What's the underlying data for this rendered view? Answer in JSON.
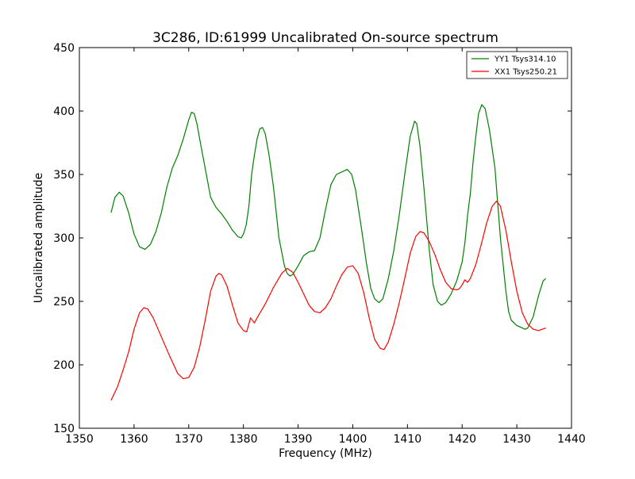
{
  "chart_data": {
    "type": "line",
    "title": "3C286, ID:61999 Uncalibrated On-source spectrum",
    "xlabel": "Frequency (MHz)",
    "ylabel": "Uncalibrated amplitude",
    "xlim": [
      1350,
      1440
    ],
    "ylim": [
      150,
      450
    ],
    "xticks": [
      1350,
      1360,
      1370,
      1380,
      1390,
      1400,
      1410,
      1420,
      1430,
      1440
    ],
    "yticks": [
      150,
      200,
      250,
      300,
      350,
      400,
      450
    ],
    "grid": false,
    "legend_position": "top-right",
    "series": [
      {
        "name": "YY1 Tsys314.10",
        "color": "#008000",
        "points": [
          [
            1355.8,
            320
          ],
          [
            1356.5,
            332
          ],
          [
            1357.3,
            336
          ],
          [
            1358.0,
            333
          ],
          [
            1359.0,
            320
          ],
          [
            1360.0,
            303
          ],
          [
            1361.0,
            293
          ],
          [
            1362.0,
            291
          ],
          [
            1363.0,
            295
          ],
          [
            1364.0,
            305
          ],
          [
            1365.0,
            320
          ],
          [
            1366.0,
            340
          ],
          [
            1367.0,
            355
          ],
          [
            1368.0,
            365
          ],
          [
            1369.0,
            378
          ],
          [
            1370.0,
            393
          ],
          [
            1370.5,
            399
          ],
          [
            1371.0,
            398
          ],
          [
            1371.5,
            390
          ],
          [
            1372.0,
            378
          ],
          [
            1373.0,
            355
          ],
          [
            1374.0,
            332
          ],
          [
            1375.0,
            324
          ],
          [
            1376.0,
            319
          ],
          [
            1377.0,
            313
          ],
          [
            1378.0,
            306
          ],
          [
            1379.0,
            301
          ],
          [
            1379.6,
            300
          ],
          [
            1380.0,
            303
          ],
          [
            1380.5,
            310
          ],
          [
            1381.0,
            325
          ],
          [
            1381.5,
            350
          ],
          [
            1382.0,
            365
          ],
          [
            1382.5,
            378
          ],
          [
            1383.0,
            386
          ],
          [
            1383.5,
            387
          ],
          [
            1384.0,
            382
          ],
          [
            1384.7,
            365
          ],
          [
            1385.5,
            340
          ],
          [
            1386.5,
            300
          ],
          [
            1387.5,
            278
          ],
          [
            1388.0,
            272
          ],
          [
            1388.5,
            270
          ],
          [
            1389.0,
            271
          ],
          [
            1390.0,
            278
          ],
          [
            1391.0,
            286
          ],
          [
            1392.0,
            289
          ],
          [
            1393.0,
            290
          ],
          [
            1394.0,
            300
          ],
          [
            1395.0,
            322
          ],
          [
            1396.0,
            342
          ],
          [
            1397.0,
            350
          ],
          [
            1398.0,
            352
          ],
          [
            1399.0,
            354
          ],
          [
            1399.8,
            350
          ],
          [
            1400.5,
            338
          ],
          [
            1401.5,
            310
          ],
          [
            1402.5,
            280
          ],
          [
            1403.3,
            260
          ],
          [
            1404.0,
            252
          ],
          [
            1404.8,
            249
          ],
          [
            1405.5,
            252
          ],
          [
            1406.5,
            268
          ],
          [
            1407.5,
            290
          ],
          [
            1408.5,
            318
          ],
          [
            1409.5,
            350
          ],
          [
            1410.5,
            380
          ],
          [
            1411.3,
            392
          ],
          [
            1411.7,
            390
          ],
          [
            1412.3,
            372
          ],
          [
            1413.0,
            340
          ],
          [
            1414.0,
            290
          ],
          [
            1414.7,
            263
          ],
          [
            1415.5,
            250
          ],
          [
            1416.2,
            247
          ],
          [
            1417.0,
            249
          ],
          [
            1418.0,
            256
          ],
          [
            1419.0,
            266
          ],
          [
            1420.0,
            281
          ],
          [
            1420.5,
            296
          ],
          [
            1421.0,
            318
          ],
          [
            1421.5,
            335
          ],
          [
            1422.0,
            360
          ],
          [
            1422.5,
            380
          ],
          [
            1423.0,
            398
          ],
          [
            1423.6,
            405
          ],
          [
            1424.2,
            402
          ],
          [
            1425.0,
            385
          ],
          [
            1426.0,
            355
          ],
          [
            1427.0,
            300
          ],
          [
            1428.0,
            258
          ],
          [
            1428.5,
            242
          ],
          [
            1429.0,
            235
          ],
          [
            1430.0,
            231
          ],
          [
            1431.0,
            229
          ],
          [
            1431.5,
            228
          ],
          [
            1432.0,
            229
          ],
          [
            1433.0,
            238
          ],
          [
            1434.0,
            255
          ],
          [
            1434.8,
            266
          ],
          [
            1435.3,
            268
          ]
        ]
      },
      {
        "name": "XX1 Tsys250.21",
        "color": "#ff0000",
        "points": [
          [
            1355.8,
            172
          ],
          [
            1357.0,
            183
          ],
          [
            1358.0,
            196
          ],
          [
            1359.0,
            210
          ],
          [
            1360.0,
            228
          ],
          [
            1361.0,
            241
          ],
          [
            1361.8,
            245
          ],
          [
            1362.5,
            244
          ],
          [
            1363.5,
            237
          ],
          [
            1365.0,
            222
          ],
          [
            1366.5,
            207
          ],
          [
            1368.0,
            193
          ],
          [
            1369.0,
            189
          ],
          [
            1370.0,
            190
          ],
          [
            1371.0,
            198
          ],
          [
            1372.0,
            214
          ],
          [
            1373.0,
            235
          ],
          [
            1374.0,
            258
          ],
          [
            1375.0,
            270
          ],
          [
            1375.5,
            272
          ],
          [
            1376.0,
            271
          ],
          [
            1377.0,
            262
          ],
          [
            1378.0,
            247
          ],
          [
            1379.0,
            233
          ],
          [
            1380.0,
            227
          ],
          [
            1380.6,
            226
          ],
          [
            1381.3,
            237
          ],
          [
            1382.0,
            233
          ],
          [
            1382.5,
            237
          ],
          [
            1384.0,
            248
          ],
          [
            1385.5,
            261
          ],
          [
            1387.0,
            272
          ],
          [
            1388.0,
            276
          ],
          [
            1389.0,
            273
          ],
          [
            1390.0,
            265
          ],
          [
            1391.0,
            256
          ],
          [
            1392.0,
            247
          ],
          [
            1393.0,
            242
          ],
          [
            1394.0,
            241
          ],
          [
            1395.0,
            245
          ],
          [
            1396.0,
            252
          ],
          [
            1397.0,
            262
          ],
          [
            1398.0,
            271
          ],
          [
            1399.0,
            277
          ],
          [
            1400.0,
            278
          ],
          [
            1401.0,
            272
          ],
          [
            1402.0,
            257
          ],
          [
            1403.0,
            237
          ],
          [
            1404.0,
            220
          ],
          [
            1405.0,
            213
          ],
          [
            1405.7,
            212
          ],
          [
            1406.5,
            218
          ],
          [
            1407.5,
            232
          ],
          [
            1408.5,
            249
          ],
          [
            1409.5,
            268
          ],
          [
            1410.5,
            288
          ],
          [
            1411.5,
            301
          ],
          [
            1412.3,
            305
          ],
          [
            1413.0,
            304
          ],
          [
            1414.0,
            297
          ],
          [
            1415.0,
            287
          ],
          [
            1416.0,
            275
          ],
          [
            1417.0,
            265
          ],
          [
            1418.0,
            260
          ],
          [
            1419.0,
            259
          ],
          [
            1419.5,
            260
          ],
          [
            1420.0,
            263
          ],
          [
            1420.5,
            267
          ],
          [
            1421.0,
            265
          ],
          [
            1421.5,
            268
          ],
          [
            1422.5,
            279
          ],
          [
            1423.5,
            295
          ],
          [
            1424.5,
            312
          ],
          [
            1425.5,
            325
          ],
          [
            1426.3,
            329
          ],
          [
            1427.0,
            325
          ],
          [
            1428.0,
            306
          ],
          [
            1429.0,
            281
          ],
          [
            1430.0,
            258
          ],
          [
            1431.0,
            241
          ],
          [
            1432.0,
            232
          ],
          [
            1433.0,
            228
          ],
          [
            1434.0,
            227
          ],
          [
            1435.3,
            229
          ]
        ]
      }
    ]
  }
}
